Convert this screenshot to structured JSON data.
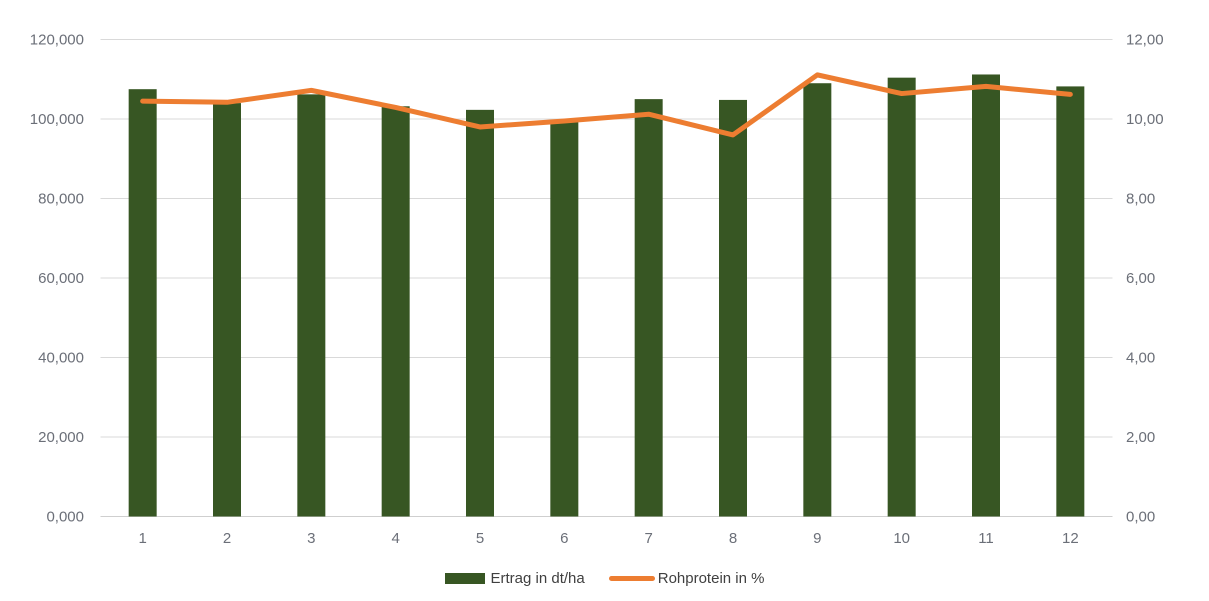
{
  "chart_data": {
    "type": "combo",
    "title": "",
    "categories": [
      "1",
      "2",
      "3",
      "4",
      "5",
      "6",
      "7",
      "8",
      "9",
      "10",
      "11",
      "12"
    ],
    "series": [
      {
        "name": "Ertrag in dt/ha",
        "type": "bar",
        "axis": "left",
        "color": "#375623",
        "values": [
          107.5,
          104.0,
          106.2,
          103.2,
          102.3,
          99.3,
          105.0,
          104.8,
          109.0,
          110.4,
          111.2,
          108.2
        ]
      },
      {
        "name": "Rohprotein in %",
        "type": "line",
        "axis": "right",
        "color": "#ED7D31",
        "values": [
          10.45,
          10.42,
          10.72,
          10.29,
          9.8,
          9.95,
          10.12,
          9.6,
          11.11,
          10.64,
          10.82,
          10.62
        ]
      }
    ],
    "left_axis": {
      "min": 0,
      "max": 120,
      "tick_labels": [
        "0,000",
        "20,000",
        "40,000",
        "60,000",
        "80,000",
        "100,000",
        "120,000"
      ]
    },
    "right_axis": {
      "min": 0,
      "max": 12,
      "tick_labels": [
        "0,00",
        "2,00",
        "4,00",
        "6,00",
        "8,00",
        "10,00",
        "12,00"
      ]
    },
    "grid": true,
    "legend_position": "bottom"
  },
  "colors": {
    "background": "#FFFFFF",
    "gridline": "#D9D9D9",
    "axis_line": "#CFCFCF",
    "axis_label": "#6B6F78",
    "legend_label": "#404040",
    "bar": "#375623",
    "line": "#ED7D31"
  }
}
